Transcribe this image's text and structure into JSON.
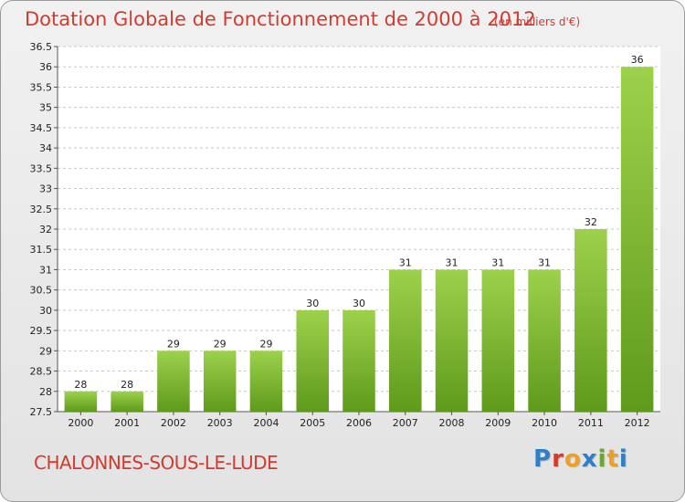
{
  "header": {
    "title": "Dotation Globale de Fonctionnement de 2000 à 2012",
    "unit": "(en milliers d'€)"
  },
  "footer": {
    "place": "CHALONNES-SOUS-LE-LUDE",
    "logo_letters": [
      {
        "char": "P",
        "color": "#2f7fc7"
      },
      {
        "char": "r",
        "color": "#d23b2e"
      },
      {
        "char": "o",
        "color": "#f0a020"
      },
      {
        "char": "x",
        "color": "#2f7fc7"
      },
      {
        "char": "i",
        "color": "#6aa82c"
      },
      {
        "char": "t",
        "color": "#f0a020"
      },
      {
        "char": "i",
        "color": "#2f7fc7"
      }
    ]
  },
  "chart_data": {
    "type": "bar",
    "title": "Dotation Globale de Fonctionnement de 2000 à 2012",
    "subtitle": "(en milliers d'€)",
    "categories": [
      "2000",
      "2001",
      "2002",
      "2003",
      "2004",
      "2005",
      "2006",
      "2007",
      "2008",
      "2009",
      "2010",
      "2011",
      "2012"
    ],
    "values": [
      28,
      28,
      29,
      29,
      29,
      30,
      30,
      31,
      31,
      31,
      31,
      32,
      36
    ],
    "data_labels": [
      "28",
      "28",
      "29",
      "29",
      "29",
      "30",
      "30",
      "31",
      "31",
      "31",
      "31",
      "32",
      "36"
    ],
    "ylim": [
      27.5,
      36.5
    ],
    "yticks": [
      27.5,
      28,
      28.5,
      29,
      29.5,
      30,
      30.5,
      31,
      31.5,
      32,
      32.5,
      33,
      33.5,
      34,
      34.5,
      35,
      35.5,
      36,
      36.5
    ],
    "xlabel": "",
    "ylabel": "",
    "grid": true,
    "bar_color_top": "#9dd14b",
    "bar_color_bottom": "#5f9a1c"
  }
}
